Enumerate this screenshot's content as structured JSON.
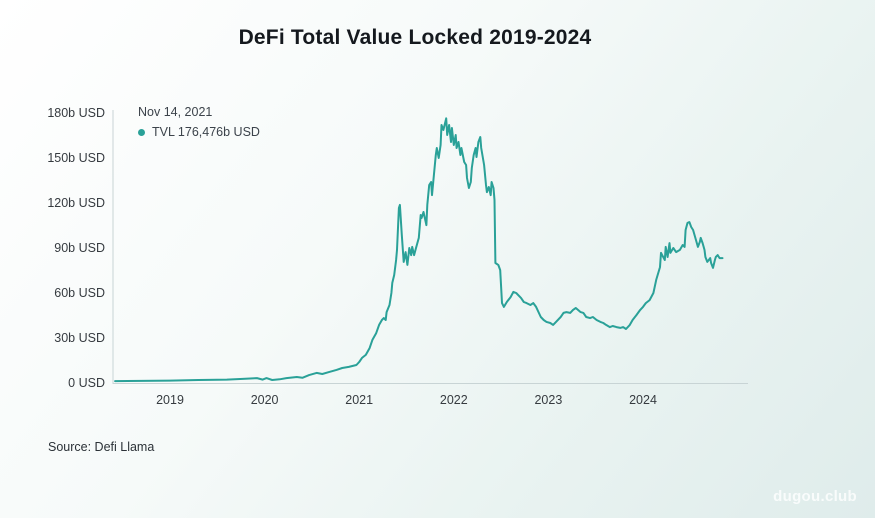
{
  "tooltip": {
    "date": "Nov 14, 2021",
    "value": "TVL 176,476b USD"
  },
  "source": {
    "text": "Source: Defi Llama"
  },
  "watermark": {
    "text": "dugou.club"
  },
  "colors": {
    "line": "#2aa198",
    "axis": "#c8d4d5",
    "background_start": "#ffffff",
    "background_end": "#dfeceb",
    "text": "#363b40"
  },
  "chart_data": {
    "type": "line",
    "title": "DeFi Total Value Locked 2019-2024",
    "xlabel": "",
    "ylabel": "",
    "xlim": [
      2018.42,
      2025.08
    ],
    "ylim": [
      0,
      180
    ],
    "grid": false,
    "legend_position": "top-left-tooltip",
    "yticks": [
      {
        "v": 0,
        "label": "0 USD"
      },
      {
        "v": 30,
        "label": "30b USD"
      },
      {
        "v": 60,
        "label": "60b USD"
      },
      {
        "v": 90,
        "label": "90b USD"
      },
      {
        "v": 120,
        "label": "120b USD"
      },
      {
        "v": 150,
        "label": "150b USD"
      },
      {
        "v": 180,
        "label": "180b USD"
      }
    ],
    "xticks": [
      {
        "t": 2019,
        "label": "2019"
      },
      {
        "t": 2020,
        "label": "2020"
      },
      {
        "t": 2021,
        "label": "2021"
      },
      {
        "t": 2022,
        "label": "2022"
      },
      {
        "t": 2023,
        "label": "2023"
      },
      {
        "t": 2024,
        "label": "2024"
      }
    ],
    "highlighted_point": {
      "date": "Nov 14, 2021",
      "t": 2021.92,
      "value": 176.476,
      "unit": "b USD"
    },
    "series": [
      {
        "name": "TVL",
        "color": "#2aa198",
        "points": [
          [
            2018.42,
            1.3
          ],
          [
            2018.7,
            1.4
          ],
          [
            2019.0,
            1.6
          ],
          [
            2019.3,
            2.0
          ],
          [
            2019.6,
            2.3
          ],
          [
            2019.77,
            2.7
          ],
          [
            2019.92,
            3.3
          ],
          [
            2019.98,
            2.3
          ],
          [
            2020.02,
            3.3
          ],
          [
            2020.08,
            2.0
          ],
          [
            2020.16,
            2.5
          ],
          [
            2020.23,
            3.3
          ],
          [
            2020.34,
            4.0
          ],
          [
            2020.4,
            3.5
          ],
          [
            2020.47,
            5.3
          ],
          [
            2020.55,
            6.7
          ],
          [
            2020.61,
            6.0
          ],
          [
            2020.68,
            7.3
          ],
          [
            2020.76,
            8.7
          ],
          [
            2020.82,
            10.0
          ],
          [
            2020.89,
            10.7
          ],
          [
            2020.97,
            12.0
          ],
          [
            2021.0,
            14.0
          ],
          [
            2021.03,
            16.7
          ],
          [
            2021.07,
            18.7
          ],
          [
            2021.11,
            23.3
          ],
          [
            2021.14,
            28.7
          ],
          [
            2021.18,
            33.3
          ],
          [
            2021.21,
            38.7
          ],
          [
            2021.24,
            42.0
          ],
          [
            2021.26,
            43.3
          ],
          [
            2021.28,
            42.0
          ],
          [
            2021.29,
            47.3
          ],
          [
            2021.32,
            52.0
          ],
          [
            2021.34,
            60.0
          ],
          [
            2021.35,
            66.7
          ],
          [
            2021.37,
            72.0
          ],
          [
            2021.39,
            82.0
          ],
          [
            2021.4,
            88.7
          ],
          [
            2021.42,
            116.7
          ],
          [
            2021.43,
            118.7
          ],
          [
            2021.45,
            98.7
          ],
          [
            2021.47,
            80.7
          ],
          [
            2021.49,
            87.3
          ],
          [
            2021.51,
            78.7
          ],
          [
            2021.53,
            90.0
          ],
          [
            2021.55,
            85.3
          ],
          [
            2021.56,
            90.7
          ],
          [
            2021.58,
            85.3
          ],
          [
            2021.6,
            90.0
          ],
          [
            2021.63,
            96.7
          ],
          [
            2021.65,
            112.0
          ],
          [
            2021.66,
            110.0
          ],
          [
            2021.68,
            114.0
          ],
          [
            2021.71,
            105.3
          ],
          [
            2021.72,
            118.7
          ],
          [
            2021.74,
            132.0
          ],
          [
            2021.76,
            134.0
          ],
          [
            2021.77,
            125.3
          ],
          [
            2021.79,
            138.7
          ],
          [
            2021.81,
            152.0
          ],
          [
            2021.82,
            156.7
          ],
          [
            2021.84,
            150.0
          ],
          [
            2021.86,
            158.7
          ],
          [
            2021.87,
            172.0
          ],
          [
            2021.89,
            168.7
          ],
          [
            2021.92,
            176.5
          ],
          [
            2021.93,
            165.3
          ],
          [
            2021.95,
            172.0
          ],
          [
            2021.97,
            160.7
          ],
          [
            2021.98,
            170.0
          ],
          [
            2022.0,
            158.7
          ],
          [
            2022.02,
            165.3
          ],
          [
            2022.03,
            156.7
          ],
          [
            2022.05,
            160.7
          ],
          [
            2022.07,
            152.0
          ],
          [
            2022.08,
            156.7
          ],
          [
            2022.11,
            147.3
          ],
          [
            2022.13,
            145.3
          ],
          [
            2022.14,
            136.7
          ],
          [
            2022.16,
            130.0
          ],
          [
            2022.18,
            134.0
          ],
          [
            2022.19,
            143.3
          ],
          [
            2022.21,
            152.0
          ],
          [
            2022.23,
            156.7
          ],
          [
            2022.24,
            150.7
          ],
          [
            2022.26,
            160.7
          ],
          [
            2022.28,
            164.0
          ],
          [
            2022.29,
            156.7
          ],
          [
            2022.32,
            145.3
          ],
          [
            2022.34,
            132.0
          ],
          [
            2022.35,
            127.3
          ],
          [
            2022.37,
            130.7
          ],
          [
            2022.39,
            125.3
          ],
          [
            2022.4,
            134.0
          ],
          [
            2022.42,
            130.0
          ],
          [
            2022.43,
            122.0
          ],
          [
            2022.44,
            80.0
          ],
          [
            2022.47,
            78.7
          ],
          [
            2022.49,
            75.3
          ],
          [
            2022.51,
            53.3
          ],
          [
            2022.53,
            50.7
          ],
          [
            2022.56,
            54.0
          ],
          [
            2022.6,
            57.3
          ],
          [
            2022.63,
            60.7
          ],
          [
            2022.66,
            60.0
          ],
          [
            2022.71,
            56.7
          ],
          [
            2022.74,
            54.0
          ],
          [
            2022.77,
            53.3
          ],
          [
            2022.81,
            52.0
          ],
          [
            2022.84,
            53.3
          ],
          [
            2022.87,
            50.7
          ],
          [
            2022.92,
            44.0
          ],
          [
            2022.95,
            42.0
          ],
          [
            2022.98,
            40.7
          ],
          [
            2023.02,
            40.0
          ],
          [
            2023.05,
            38.7
          ],
          [
            2023.08,
            40.7
          ],
          [
            2023.13,
            44.0
          ],
          [
            2023.16,
            46.7
          ],
          [
            2023.19,
            47.3
          ],
          [
            2023.23,
            46.7
          ],
          [
            2023.26,
            48.7
          ],
          [
            2023.29,
            50.0
          ],
          [
            2023.34,
            47.3
          ],
          [
            2023.37,
            46.7
          ],
          [
            2023.4,
            44.0
          ],
          [
            2023.44,
            43.3
          ],
          [
            2023.47,
            44.0
          ],
          [
            2023.51,
            42.0
          ],
          [
            2023.55,
            40.7
          ],
          [
            2023.58,
            40.0
          ],
          [
            2023.61,
            38.7
          ],
          [
            2023.65,
            37.3
          ],
          [
            2023.68,
            38.0
          ],
          [
            2023.72,
            37.3
          ],
          [
            2023.76,
            36.7
          ],
          [
            2023.79,
            37.3
          ],
          [
            2023.82,
            36.0
          ],
          [
            2023.86,
            38.7
          ],
          [
            2023.89,
            42.0
          ],
          [
            2023.93,
            45.3
          ],
          [
            2023.97,
            48.7
          ],
          [
            2024.0,
            50.7
          ],
          [
            2024.03,
            53.3
          ],
          [
            2024.07,
            55.3
          ],
          [
            2024.11,
            60.0
          ],
          [
            2024.14,
            68.7
          ],
          [
            2024.18,
            77.3
          ],
          [
            2024.19,
            86.7
          ],
          [
            2024.23,
            82.0
          ],
          [
            2024.24,
            90.7
          ],
          [
            2024.26,
            84.0
          ],
          [
            2024.28,
            93.3
          ],
          [
            2024.29,
            86.7
          ],
          [
            2024.32,
            90.0
          ],
          [
            2024.35,
            87.3
          ],
          [
            2024.39,
            88.7
          ],
          [
            2024.42,
            92.0
          ],
          [
            2024.44,
            90.7
          ],
          [
            2024.45,
            102.0
          ],
          [
            2024.47,
            106.7
          ],
          [
            2024.49,
            107.3
          ],
          [
            2024.51,
            104.0
          ],
          [
            2024.53,
            102.0
          ],
          [
            2024.56,
            95.3
          ],
          [
            2024.58,
            90.7
          ],
          [
            2024.6,
            94.0
          ],
          [
            2024.61,
            96.7
          ],
          [
            2024.63,
            93.3
          ],
          [
            2024.65,
            88.7
          ],
          [
            2024.66,
            84.0
          ],
          [
            2024.68,
            80.7
          ],
          [
            2024.71,
            83.3
          ],
          [
            2024.72,
            80.0
          ],
          [
            2024.74,
            76.7
          ],
          [
            2024.76,
            82.0
          ],
          [
            2024.77,
            84.0
          ],
          [
            2024.79,
            85.3
          ],
          [
            2024.81,
            83.3
          ],
          [
            2024.84,
            83.3
          ]
        ]
      }
    ]
  }
}
